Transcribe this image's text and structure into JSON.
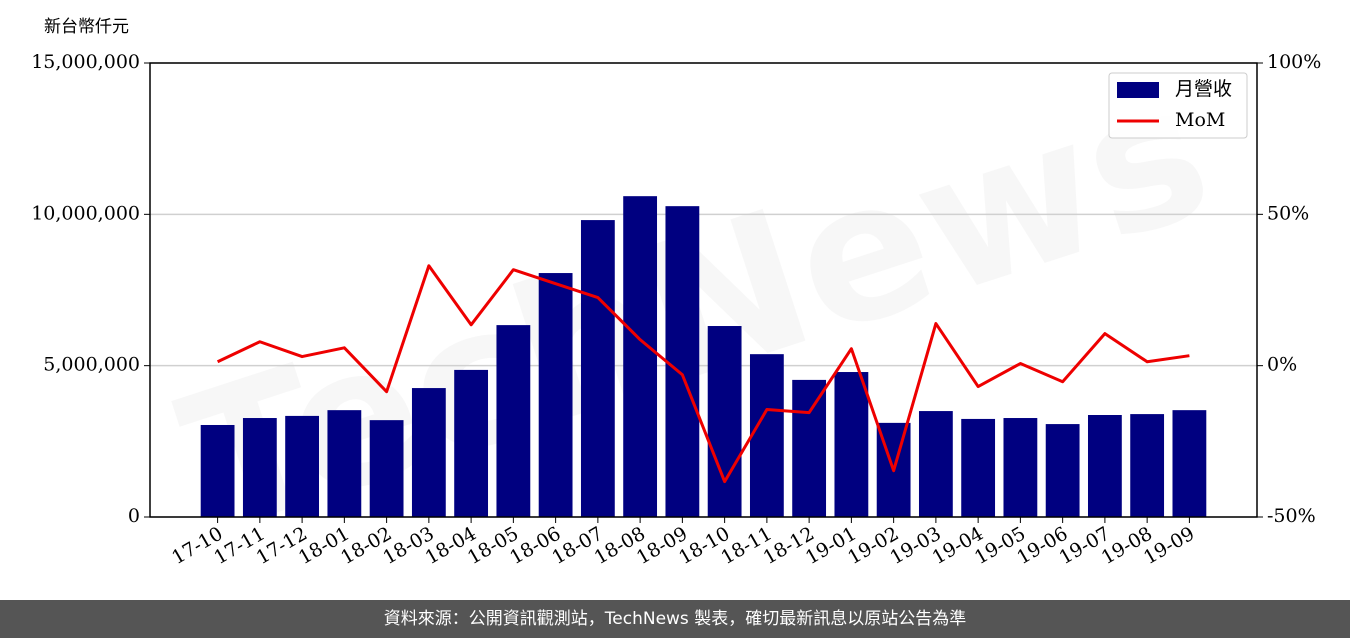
{
  "chart_data": {
    "type": "bar",
    "y_label": "新台幣仟元",
    "watermark": "TechNews",
    "categories": [
      "17-10",
      "17-11",
      "17-12",
      "18-01",
      "18-02",
      "18-03",
      "18-04",
      "18-05",
      "18-06",
      "18-07",
      "18-08",
      "18-09",
      "18-10",
      "18-11",
      "18-12",
      "19-01",
      "19-02",
      "19-03",
      "19-04",
      "19-05",
      "19-06",
      "19-07",
      "19-08",
      "19-09"
    ],
    "series": [
      {
        "name": "月營收",
        "type": "bar",
        "axis": "y",
        "color": "#000080",
        "values": [
          3040000,
          3270000,
          3340000,
          3530000,
          3200000,
          4260000,
          4860000,
          6340000,
          8060000,
          9810000,
          10600000,
          10270000,
          6310000,
          5380000,
          4530000,
          4790000,
          3110000,
          3500000,
          3240000,
          3270000,
          3070000,
          3370000,
          3400000,
          3530000
        ]
      },
      {
        "name": "MoM",
        "type": "line",
        "axis": "y2",
        "color": "#ee0000",
        "values": [
          1.3,
          7.9,
          3.0,
          5.9,
          -8.6,
          33.0,
          13.5,
          31.7,
          27.1,
          22.5,
          8.6,
          -3.0,
          -38.3,
          -14.5,
          -15.5,
          5.6,
          -34.7,
          13.9,
          -6.9,
          0.7,
          -5.3,
          10.6,
          1.3,
          3.3
        ]
      }
    ],
    "ylim": [
      0,
      15000000
    ],
    "yticks": [
      {
        "value": 0,
        "label": "0"
      },
      {
        "value": 5000000,
        "label": "5,000,000"
      },
      {
        "value": 10000000,
        "label": "10,000,000"
      },
      {
        "value": 15000000,
        "label": "15,000,000"
      }
    ],
    "y2lim": [
      -50,
      100
    ],
    "y2ticks": [
      {
        "value": -50,
        "label": "-50%"
      },
      {
        "value": 0,
        "label": "0%"
      },
      {
        "value": 50,
        "label": "50%"
      },
      {
        "value": 100,
        "label": "100%"
      }
    ],
    "grid": true,
    "legend": "upper right"
  },
  "footer": "資料來源：公開資訊觀測站，TechNews 製表，確切最新訊息以原站公告為準"
}
